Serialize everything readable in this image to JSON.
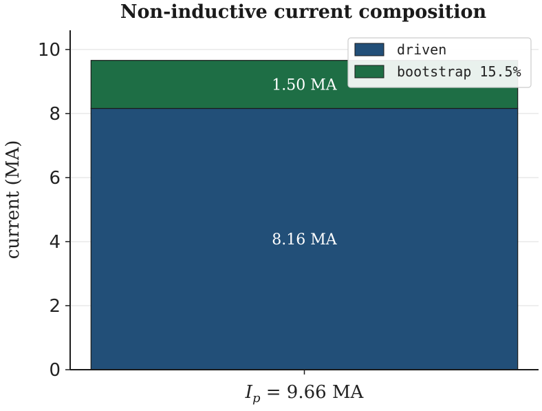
{
  "chart_data": {
    "type": "bar",
    "stacked": true,
    "title": "Non-inductive current composition",
    "ylabel": "current (MA)",
    "xlabel": "",
    "categories": [
      "I_p = 9.66 MA"
    ],
    "x_tick": {
      "symbol": "I",
      "subscript": "p",
      "rest": " = 9.66 MA"
    },
    "ylim": [
      0,
      10.6
    ],
    "yticks": [
      0,
      2,
      4,
      6,
      8,
      10
    ],
    "grid": "horizontal",
    "legend_position": "top-right",
    "series": [
      {
        "name": "driven",
        "values": [
          8.16
        ],
        "color": "#224f78",
        "label": "8.16 MA"
      },
      {
        "name": "bootstrap 15.5%",
        "values": [
          1.5
        ],
        "color": "#1e6e45",
        "label": "1.50 MA"
      }
    ]
  }
}
